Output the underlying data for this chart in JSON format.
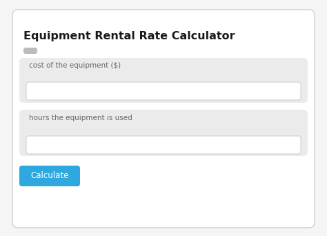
{
  "title": "Equipment Rental Rate Calculator",
  "title_fontsize": 11.5,
  "title_color": "#1a1a1a",
  "background_color": "#f5f5f5",
  "outer_border_color": "#d0d0d0",
  "outer_border_bg": "#ffffff",
  "form_bg": "#ebebeb",
  "input_bg": "#ffffff",
  "input_border": "#d0d0d0",
  "label1": "cost of the equipment ($)",
  "label2": "hours the equipment is used",
  "label_color": "#666666",
  "label_fontsize": 7.5,
  "button_color": "#2fa8e0",
  "button_text": "Calculate",
  "button_text_color": "#ffffff",
  "button_fontsize": 8.5,
  "small_rect_color": "#bbbbbb",
  "figw": 4.74,
  "figh": 3.42,
  "dpi": 100
}
